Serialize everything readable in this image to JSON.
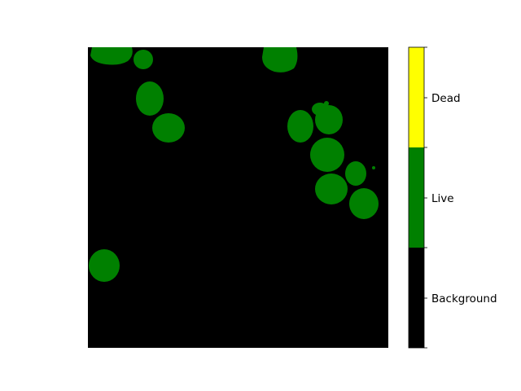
{
  "figure": {
    "image_background_color": "#000000"
  },
  "colorbar": {
    "categories": [
      {
        "label": "Dead",
        "color": "#ffff00"
      },
      {
        "label": "Live",
        "color": "#008000"
      },
      {
        "label": "Background",
        "color": "#000000"
      }
    ]
  }
}
